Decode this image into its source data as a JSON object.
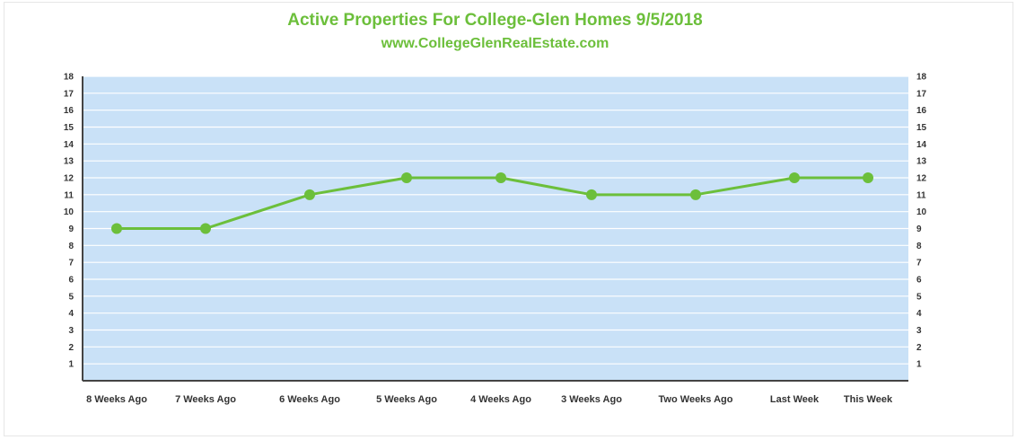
{
  "chart_data": {
    "type": "line",
    "title": "Active Properties For College-Glen Homes 9/5/2018",
    "subtitle": "www.CollegeGlenRealEstate.com",
    "categories": [
      "8 Weeks Ago",
      "7 Weeks Ago",
      "6 Weeks Ago",
      "5 Weeks Ago",
      "4 Weeks Ago",
      "3 Weeks Ago",
      "Two Weeks Ago",
      "Last Week",
      "This Week"
    ],
    "series": [
      {
        "values": [
          9,
          9,
          11,
          12,
          12,
          11,
          11,
          12,
          12
        ]
      }
    ],
    "xlabel": "",
    "ylabel": "",
    "ylim": [
      0,
      18
    ],
    "yticks": [
      1,
      2,
      3,
      4,
      5,
      6,
      7,
      8,
      9,
      10,
      11,
      12,
      13,
      14,
      15,
      16,
      17,
      18
    ],
    "y_axis_sides": "both",
    "grid": true,
    "legend": "none",
    "colors": {
      "line": "#6cbf3b",
      "plot_background": "#c9e1f7",
      "gridline": "#ffffff",
      "title": "#6cbf3b",
      "axis": "#444444"
    }
  }
}
